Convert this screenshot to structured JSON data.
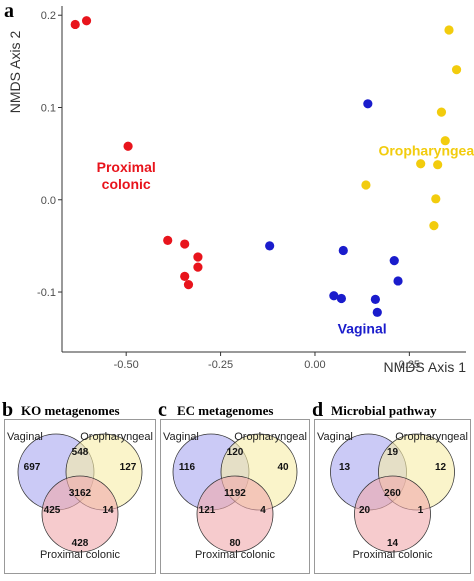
{
  "panel_a": {
    "letter": "a",
    "chart_data": {
      "type": "scatter",
      "xlabel": "NMDS Axis 1",
      "ylabel": "NMDS Axis 2",
      "xlim": [
        -0.67,
        0.4
      ],
      "ylim": [
        -0.165,
        0.21
      ],
      "x_ticks": [
        -0.5,
        -0.25,
        0.0,
        0.25
      ],
      "x_tick_labels": [
        "-0.50",
        "-0.25",
        "0.00",
        "0.25"
      ],
      "y_ticks": [
        -0.1,
        0.0,
        0.1,
        0.2
      ],
      "y_tick_labels": [
        "-0.1",
        "0.0",
        "0.1",
        "0.2"
      ],
      "grid": false,
      "series": [
        {
          "name": "Proximal colonic",
          "label_lines": [
            "Proximal",
            "colonic"
          ],
          "color": "#e8141c",
          "points": [
            [
              -0.635,
              0.19
            ],
            [
              -0.605,
              0.194
            ],
            [
              -0.495,
              0.058
            ],
            [
              -0.39,
              -0.044
            ],
            [
              -0.345,
              -0.048
            ],
            [
              -0.31,
              -0.062
            ],
            [
              -0.31,
              -0.073
            ],
            [
              -0.345,
              -0.083
            ],
            [
              -0.335,
              -0.092
            ]
          ]
        },
        {
          "name": "Vaginal",
          "label_lines": [
            "Vaginal"
          ],
          "color": "#1a1ccc",
          "points": [
            [
              -0.12,
              -0.05
            ],
            [
              0.075,
              -0.055
            ],
            [
              0.05,
              -0.104
            ],
            [
              0.07,
              -0.107
            ],
            [
              0.14,
              0.104
            ],
            [
              0.21,
              -0.066
            ],
            [
              0.22,
              -0.088
            ],
            [
              0.16,
              -0.108
            ],
            [
              0.165,
              -0.122
            ]
          ]
        },
        {
          "name": "Oropharyngeal",
          "label_lines": [
            "Oropharyngeal"
          ],
          "color": "#f2cc0d",
          "points": [
            [
              0.355,
              0.184
            ],
            [
              0.375,
              0.141
            ],
            [
              0.335,
              0.095
            ],
            [
              0.345,
              0.064
            ],
            [
              0.325,
              0.038
            ],
            [
              0.28,
              0.039
            ],
            [
              0.135,
              0.016
            ],
            [
              0.32,
              0.001
            ],
            [
              0.315,
              -0.028
            ]
          ]
        }
      ]
    }
  },
  "venns": [
    {
      "letter": "b",
      "title": "KO metagenomes",
      "labels": {
        "a": "Vaginal",
        "b": "Oropharyngeal",
        "c": "Proximal colonic"
      },
      "values": {
        "a_only": "697",
        "b_only": "127",
        "c_only": "428",
        "ab": "548",
        "ac": "425",
        "bc": "14",
        "abc": "3162"
      }
    },
    {
      "letter": "c",
      "title": "EC metagenomes",
      "labels": {
        "a": "Vaginal",
        "b": "Oropharyngeal",
        "c": "Proximal colonic"
      },
      "values": {
        "a_only": "116",
        "b_only": "40",
        "c_only": "80",
        "ab": "120",
        "ac": "121",
        "bc": "4",
        "abc": "1192"
      }
    },
    {
      "letter": "d",
      "title": "Microbial pathway",
      "labels": {
        "a": "Vaginal",
        "b": "Oropharyngeal",
        "c": "Proximal colonic"
      },
      "values": {
        "a_only": "13",
        "b_only": "12",
        "c_only": "14",
        "ab": "19",
        "ac": "20",
        "bc": "1",
        "abc": "260"
      }
    }
  ],
  "colors": {
    "vaginal_circle": "#a9a6f0",
    "oro_circle": "#f7eda6",
    "colonic_circle": "#f0a8ab"
  }
}
